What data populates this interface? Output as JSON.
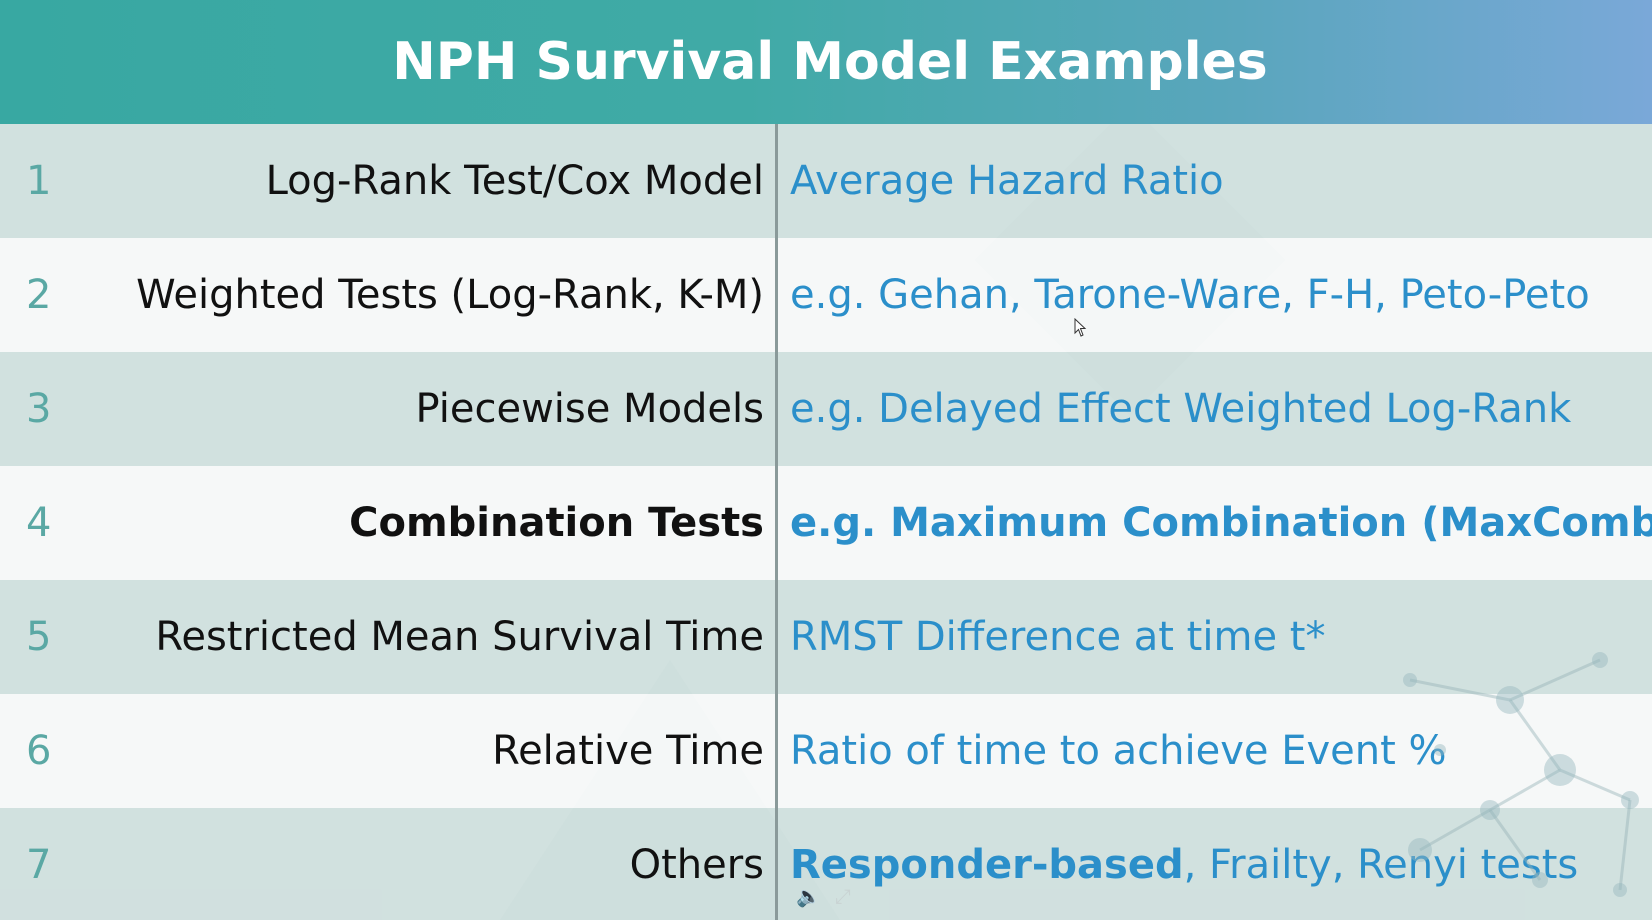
{
  "title": "NPH Survival Model Examples",
  "rows": [
    {
      "num": "1",
      "left": "Log-Rank Test/Cox Model",
      "right": "Average Hazard Ratio"
    },
    {
      "num": "2",
      "left": "Weighted Tests (Log-Rank, K-M)",
      "right": "e.g. Gehan, Tarone-Ware, F-H, Peto-Peto"
    },
    {
      "num": "3",
      "left": "Piecewise Models",
      "right": "e.g. Delayed Effect Weighted Log-Rank"
    },
    {
      "num": "4",
      "left": "Combination Tests",
      "right": "e.g. Maximum Combination (MaxCombo)"
    },
    {
      "num": "5",
      "left": "Restricted Mean Survival Time",
      "right": "RMST Difference at time t*"
    },
    {
      "num": "6",
      "left": "Relative Time",
      "right": "Ratio of time to achieve Event %"
    },
    {
      "num": "7",
      "left": "Others",
      "right_strong": "Responder-based",
      "right_rest": ", Frailty, Renyi tests"
    }
  ],
  "icons": {
    "volume": "volume-icon",
    "fullscreen": "expand-icon",
    "cursor": "mouse-pointer-icon"
  },
  "colors": {
    "title_bar_start": "#38a8a2",
    "title_bar_end": "#7aa8d8",
    "number": "#5aa8a4",
    "right_text": "#2b8fca",
    "left_text": "#111111"
  }
}
